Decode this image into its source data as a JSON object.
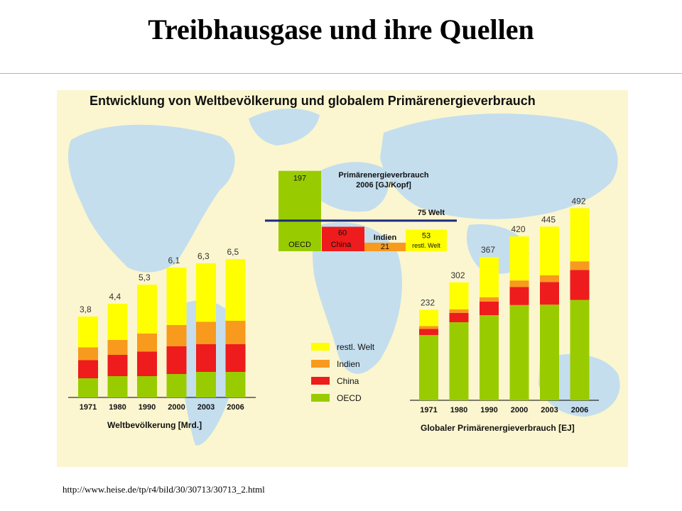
{
  "slide": {
    "title": "Treibhausgase und ihre Quellen",
    "source_url": "http://www.heise.de/tp/r4/bild/30/30713/30713_2.html"
  },
  "colors": {
    "background": "#fbf6cf",
    "map": "#c4deee",
    "restl_welt": "#ffff00",
    "indien": "#f79a1e",
    "china": "#ee1c1c",
    "oecd": "#99cc00",
    "reference_line": "#1b2a7a"
  },
  "chart_data": [
    {
      "type": "bar",
      "stacked": true,
      "title": "Entwicklung von Weltbevölkerung und globalem Primärenergieverbrauch",
      "xlabel": "Weltbevölkerung [Mrd.]",
      "categories": [
        "1971",
        "1980",
        "1990",
        "2000",
        "2003",
        "2006"
      ],
      "totals": [
        3.8,
        4.4,
        5.3,
        6.1,
        6.3,
        6.5
      ],
      "total_labels": [
        "3,8",
        "4,4",
        "5,3",
        "6,1",
        "6,3",
        "6,5"
      ],
      "series": [
        {
          "name": "OECD",
          "values": [
            0.9,
            1.0,
            1.0,
            1.1,
            1.2,
            1.2
          ]
        },
        {
          "name": "China",
          "values": [
            0.85,
            1.0,
            1.15,
            1.3,
            1.3,
            1.3
          ]
        },
        {
          "name": "Indien",
          "values": [
            0.6,
            0.7,
            0.85,
            1.0,
            1.05,
            1.1
          ]
        },
        {
          "name": "restl. Welt",
          "values": [
            1.45,
            1.7,
            2.3,
            2.7,
            2.75,
            2.9
          ]
        }
      ]
    },
    {
      "type": "bar",
      "stacked": true,
      "xlabel": "Globaler Primärenergieverbrauch [EJ]",
      "categories": [
        "1971",
        "1980",
        "1990",
        "2000",
        "2003",
        "2006"
      ],
      "totals": [
        232,
        302,
        367,
        420,
        445,
        492
      ],
      "total_labels": [
        "232",
        "302",
        "367",
        "420",
        "445",
        "492"
      ],
      "series": [
        {
          "name": "OECD",
          "values": [
            167,
            200,
            218,
            244,
            245,
            257
          ]
        },
        {
          "name": "China",
          "values": [
            16,
            24,
            35,
            46,
            58,
            77
          ]
        },
        {
          "name": "Indien",
          "values": [
            7,
            9,
            11,
            17,
            17,
            22
          ]
        },
        {
          "name": "restl. Welt",
          "values": [
            42,
            69,
            103,
            113,
            125,
            136
          ]
        }
      ]
    },
    {
      "type": "bar",
      "title": "Primärenergieverbrauch 2006 [GJ/Kopf]",
      "categories": [
        "OECD",
        "China",
        "Indien",
        "restl. Welt"
      ],
      "values": [
        197,
        60,
        21,
        53
      ],
      "value_labels": [
        "197",
        "60",
        "21",
        "53"
      ],
      "reference": {
        "value": 75,
        "label": "75 Welt"
      }
    }
  ],
  "legend": {
    "items": [
      {
        "label": "restl. Welt",
        "color": "#ffff00"
      },
      {
        "label": "Indien",
        "color": "#f79a1e"
      },
      {
        "label": "China",
        "color": "#ee1c1c"
      },
      {
        "label": "OECD",
        "color": "#99cc00"
      }
    ]
  }
}
